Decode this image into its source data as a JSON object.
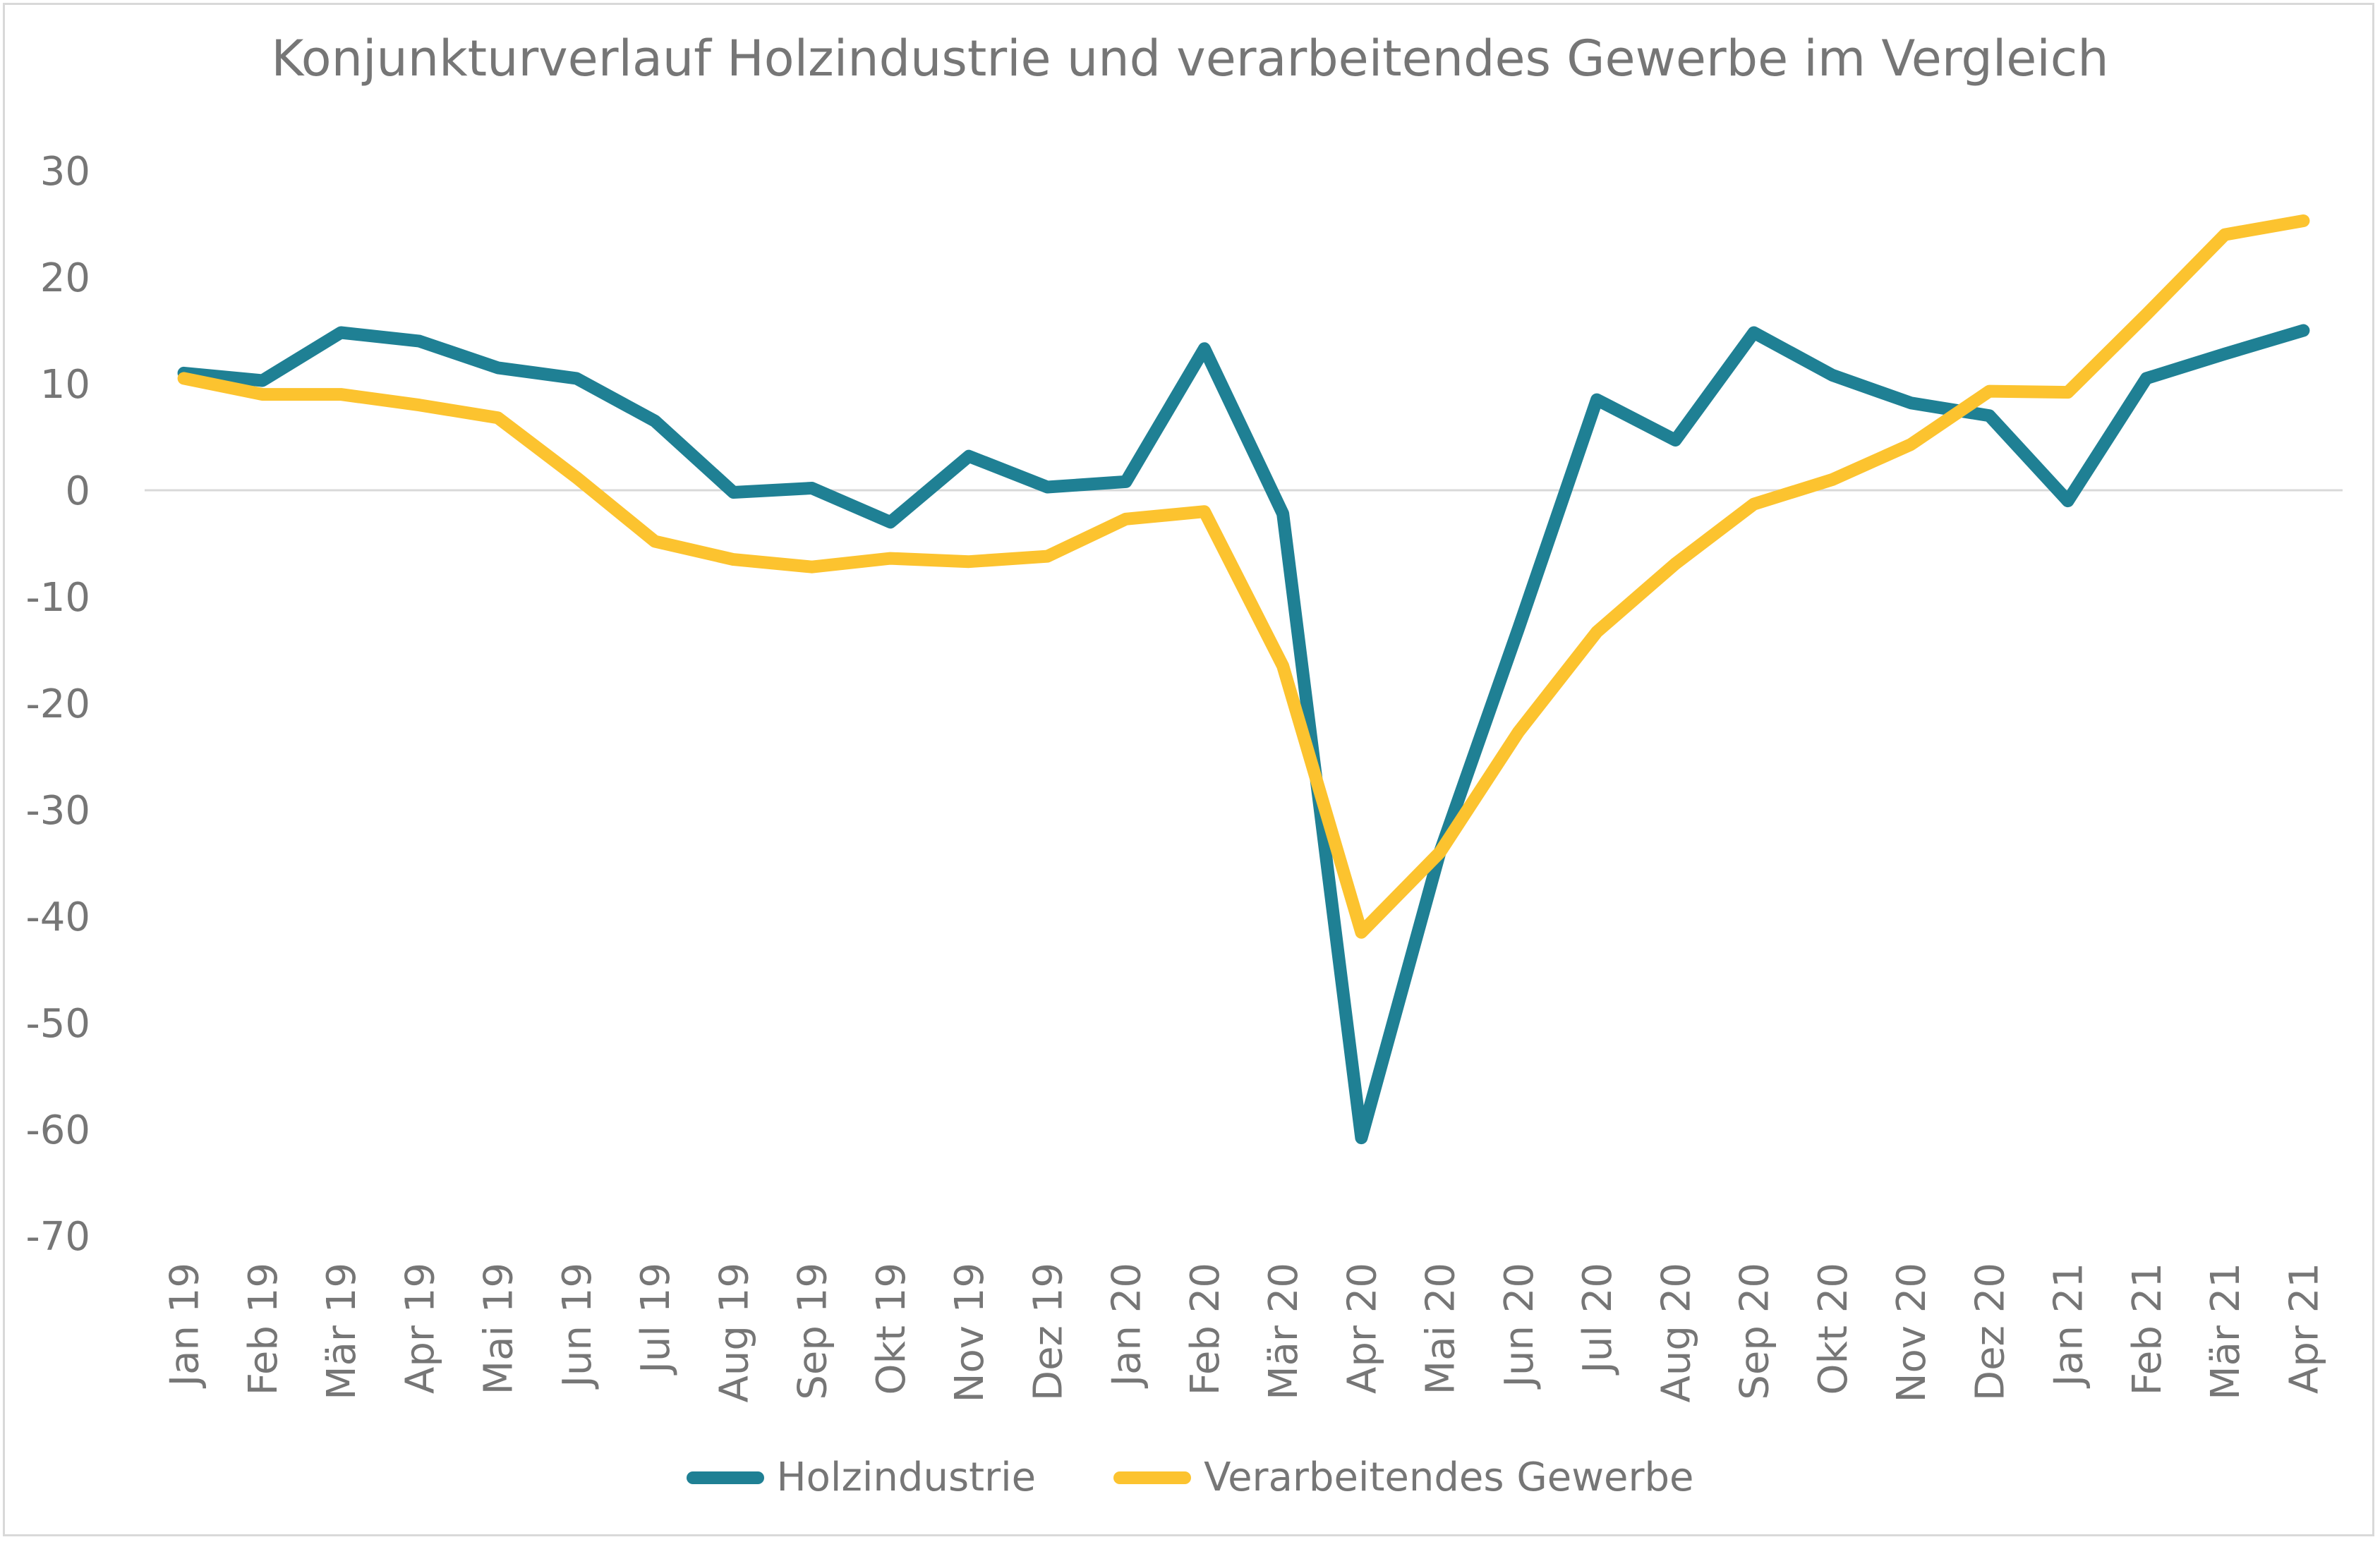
{
  "chart_data": {
    "type": "line",
    "title": "Konjunkturverlauf Holzindustrie und verarbeitendes Gewerbe im Vergleich",
    "categories": [
      "Jan 19",
      "Feb 19",
      "Mär 19",
      "Apr 19",
      "Mai 19",
      "Jun 19",
      "Jul 19",
      "Aug 19",
      "Sep 19",
      "Okt 19",
      "Nov 19",
      "Dez 19",
      "Jan 20",
      "Feb 20",
      "Mär 20",
      "Apr 20",
      "Mai 20",
      "Jun 20",
      "Jul 20",
      "Aug 20",
      "Sep 20",
      "Okt 20",
      "Nov 20",
      "Dez 20",
      "Jan 21",
      "Feb 21",
      "Mär 21",
      "Apr 21"
    ],
    "yticks": [
      "30",
      "20",
      "10",
      "0",
      "-10",
      "-20",
      "-30",
      "-40",
      "-50",
      "-60",
      "-70"
    ],
    "ylim": [
      -70,
      30
    ],
    "grid": false,
    "legend_position": "bottom",
    "series": [
      {
        "name": "Holzindustrie",
        "color": "#1f8094",
        "values": [
          11,
          10.3,
          14.8,
          14,
          11.5,
          10.5,
          6.5,
          -0.2,
          0.2,
          -3,
          3.2,
          0.3,
          0.8,
          13.3,
          -2.2,
          -60.8,
          -34,
          -13,
          8.5,
          4.7,
          14.8,
          10.8,
          8.2,
          7,
          -1,
          10.5,
          12.8,
          15
        ]
      },
      {
        "name": "Verarbeitendes Gewerbe",
        "color": "#fcc32f",
        "values": [
          10.5,
          9,
          9,
          8,
          6.8,
          1.2,
          -4.8,
          -6.5,
          -7.2,
          -6.4,
          -6.7,
          -6.2,
          -2.7,
          -2,
          -16.5,
          -41.5,
          -34,
          -22.7,
          -13.3,
          -6.9,
          -1.3,
          1,
          4.3,
          9.3,
          9.2,
          16.5,
          24,
          25.3
        ]
      }
    ]
  }
}
